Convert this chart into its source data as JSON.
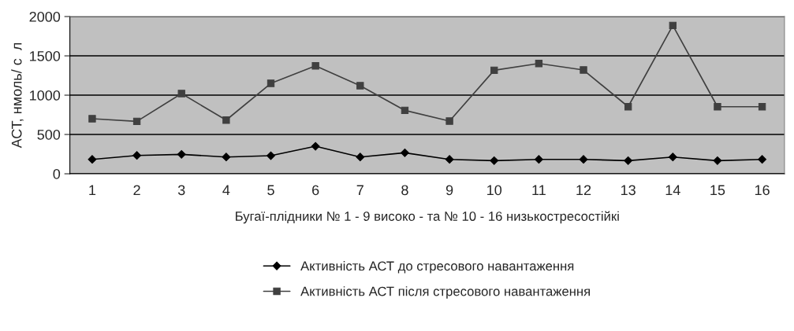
{
  "chart_data": {
    "type": "line",
    "xlabel": "Бугаї-плідники № 1 - 9 високо - та № 10 - 16 низькостресостійкі",
    "ylabel": "АСТ, нмоль/ с  л",
    "categories": [
      "1",
      "2",
      "3",
      "4",
      "5",
      "6",
      "7",
      "8",
      "9",
      "10",
      "11",
      "12",
      "13",
      "14",
      "15",
      "16"
    ],
    "series": [
      {
        "name": "Активність АСТ до стресового навантаження",
        "color": "#000000",
        "marker": "diamond",
        "values": [
          183,
          233,
          247,
          213,
          230,
          350,
          213,
          267,
          183,
          167,
          183,
          183,
          167,
          213,
          167,
          183
        ]
      },
      {
        "name": "Активність АСТ після стресового навантаження",
        "color": "#404040",
        "marker": "square",
        "values": [
          700,
          667,
          1020,
          683,
          1150,
          1373,
          1120,
          807,
          670,
          1317,
          1403,
          1320,
          853,
          1887,
          853,
          853
        ]
      }
    ],
    "ylim": [
      0,
      2000
    ],
    "yticks": [
      0,
      500,
      1000,
      1500,
      2000
    ],
    "grid": "y",
    "legend": "bottom",
    "line_style": "solid"
  }
}
